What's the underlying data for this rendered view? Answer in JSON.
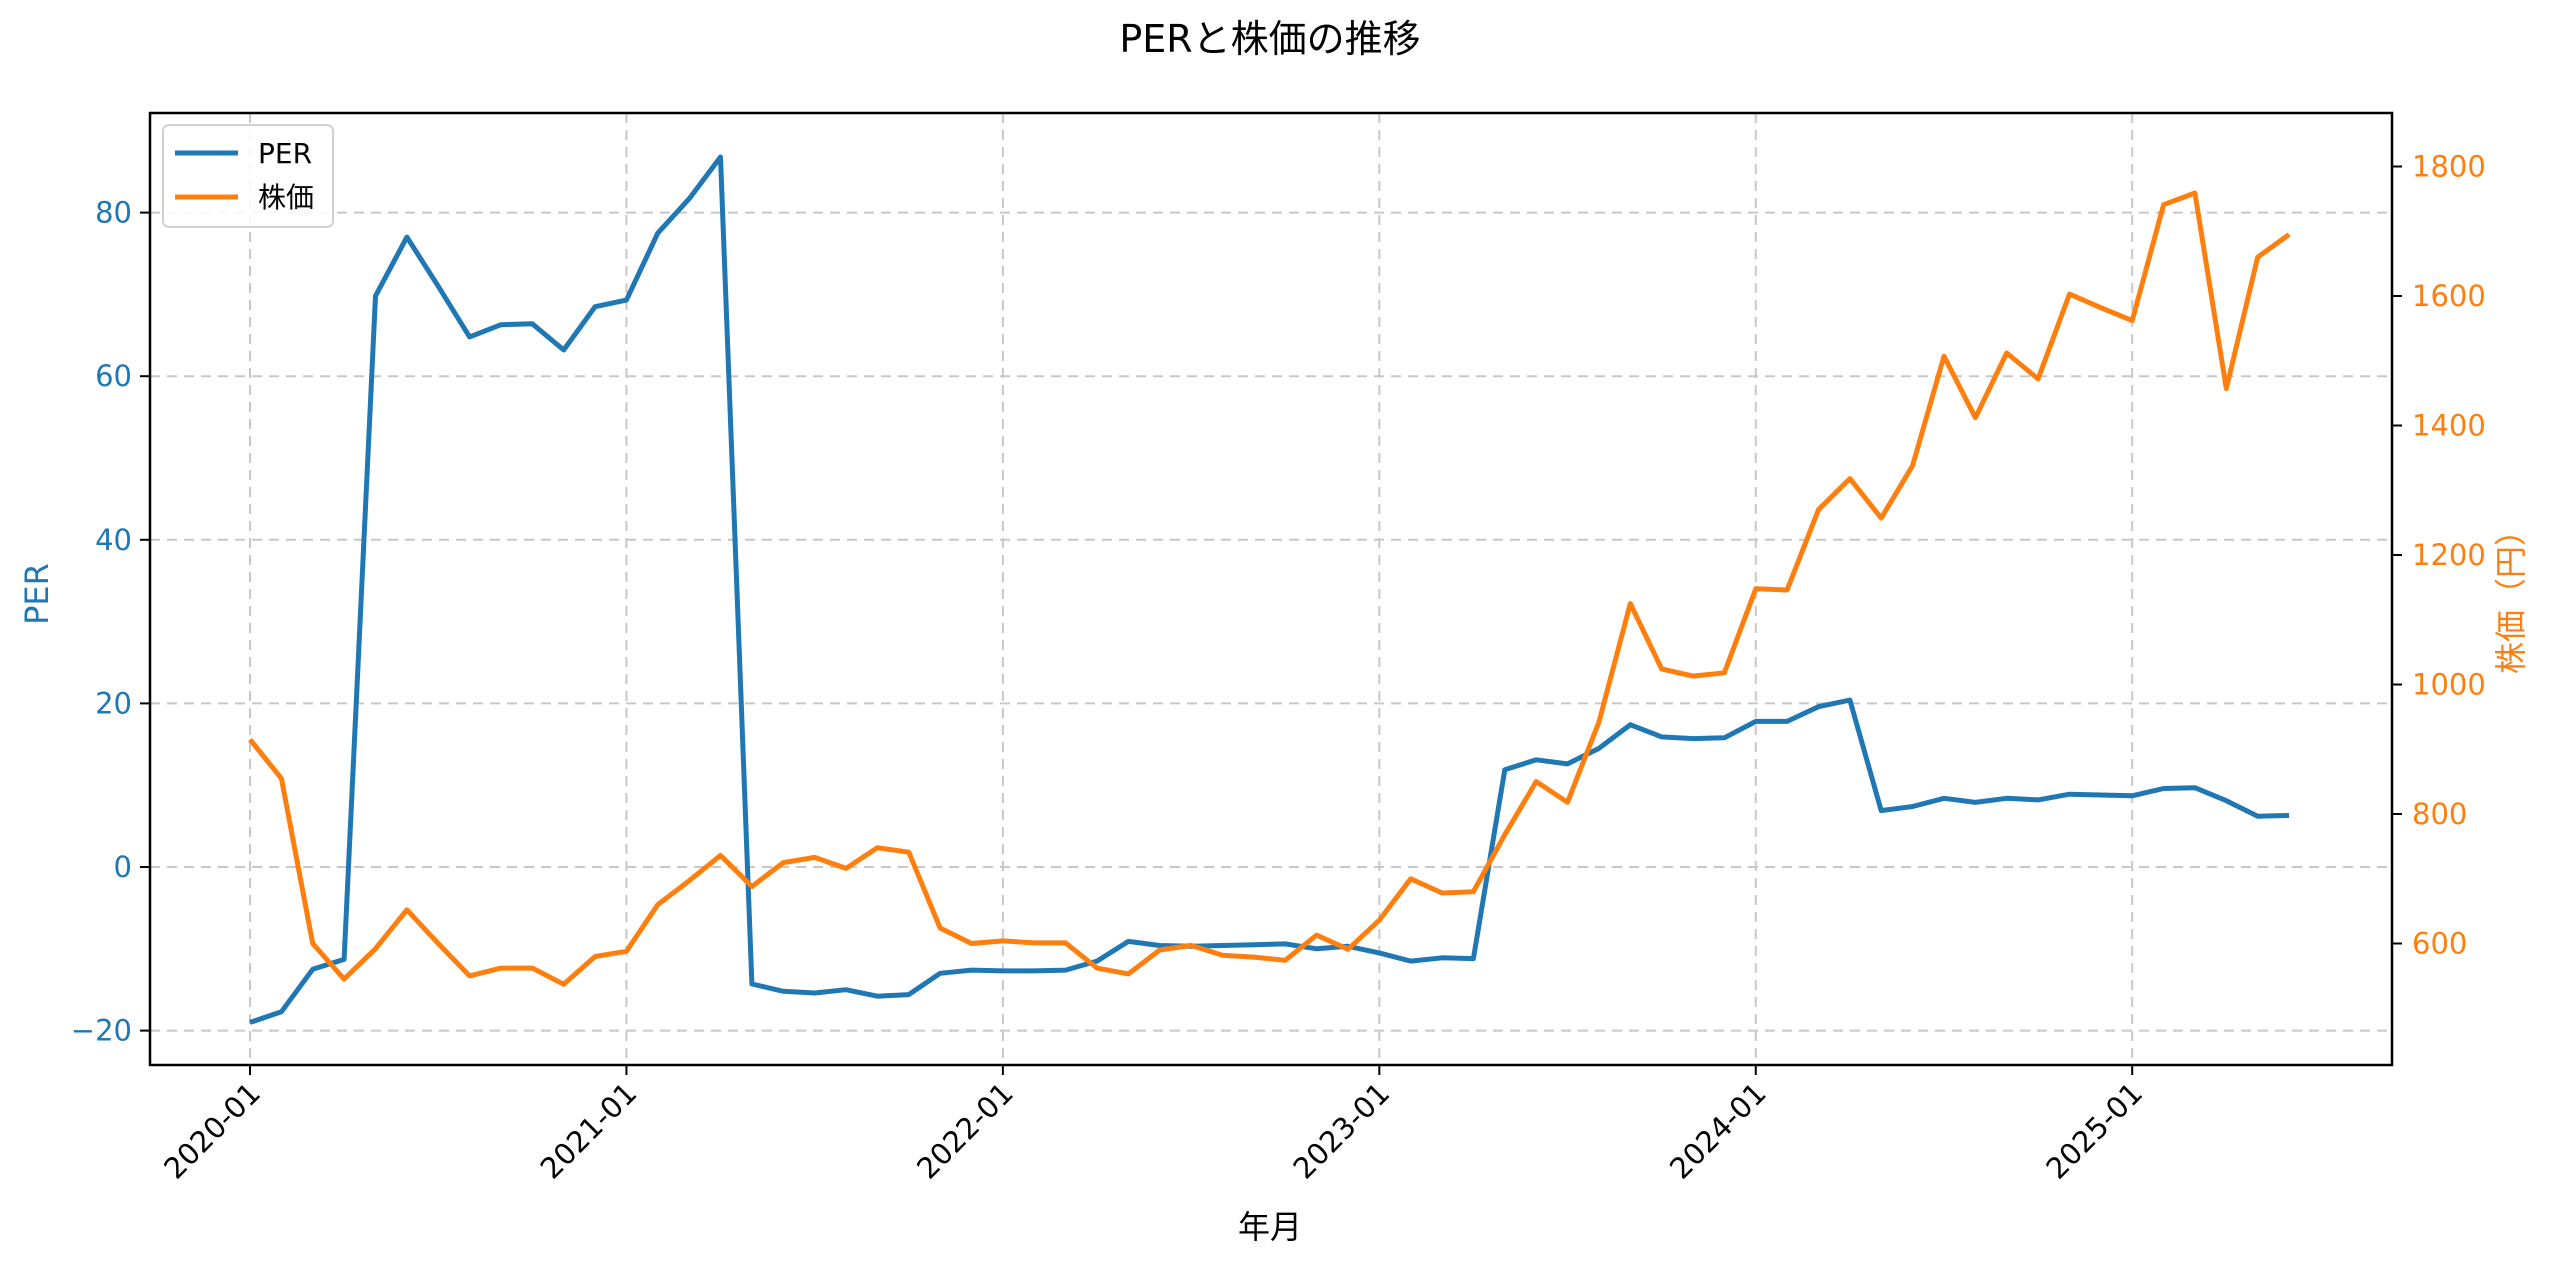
{
  "colors": {
    "per": "#1f77b4",
    "price": "#ff7f0e",
    "grid": "#c8c8c8",
    "axis": "#000000"
  },
  "chart_data": {
    "type": "line",
    "title": "PERと株価の推移",
    "xlabel": "年月",
    "ylabel_left": "PER",
    "ylabel_right": "株価（円）",
    "legend": [
      "PER",
      "株価"
    ],
    "legend_position": "upper left",
    "grid": true,
    "x_ticks": [
      "2020-01",
      "2021-01",
      "2022-01",
      "2023-01",
      "2024-01",
      "2025-01"
    ],
    "ylim_left": [
      -24,
      92
    ],
    "yticks_left": [
      -20,
      0,
      20,
      40,
      60,
      80
    ],
    "ylim_right": [
      465,
      1875
    ],
    "yticks_right": [
      600,
      800,
      1000,
      1200,
      1400,
      1600,
      1800
    ],
    "x": [
      "2020-01",
      "2020-02",
      "2020-03",
      "2020-04",
      "2020-05",
      "2020-06",
      "2020-07",
      "2020-08",
      "2020-09",
      "2020-10",
      "2020-11",
      "2020-12",
      "2021-01",
      "2021-02",
      "2021-03",
      "2021-04",
      "2021-05",
      "2021-06",
      "2021-07",
      "2021-08",
      "2021-09",
      "2021-10",
      "2021-11",
      "2021-12",
      "2022-01",
      "2022-02",
      "2022-03",
      "2022-04",
      "2022-05",
      "2022-06",
      "2022-07",
      "2022-08",
      "2022-09",
      "2022-10",
      "2022-11",
      "2022-12",
      "2023-01",
      "2023-02",
      "2023-03",
      "2023-04",
      "2023-05",
      "2023-06",
      "2023-07",
      "2023-08",
      "2023-09",
      "2023-10",
      "2023-11",
      "2023-12",
      "2024-01",
      "2024-02",
      "2024-03",
      "2024-04",
      "2024-05",
      "2024-06",
      "2024-07",
      "2024-08",
      "2024-09",
      "2024-10",
      "2024-11",
      "2024-12",
      "2025-01",
      "2025-02",
      "2025-03",
      "2025-04",
      "2025-05",
      "2025-06"
    ],
    "series": [
      {
        "name": "PER",
        "axis": "left",
        "values": [
          -19.0,
          -17.7,
          -12.5,
          -11.3,
          69.8,
          77.0,
          71.0,
          64.8,
          66.3,
          66.4,
          63.2,
          68.5,
          69.3,
          77.5,
          81.7,
          86.8,
          -14.3,
          -15.2,
          -15.4,
          -15.0,
          -15.8,
          -15.6,
          -13.0,
          -12.6,
          -12.7,
          -12.7,
          -12.6,
          -11.5,
          -9.1,
          -9.6,
          -9.7,
          -9.6,
          -9.5,
          -9.4,
          -10.0,
          -9.7,
          -10.5,
          -11.5,
          -11.1,
          -11.2,
          11.9,
          13.1,
          12.6,
          14.5,
          17.4,
          15.9,
          15.7,
          15.8,
          17.8,
          17.8,
          19.6,
          20.4,
          6.9,
          7.4,
          8.4,
          7.9,
          8.4,
          8.2,
          8.9,
          8.8,
          8.7,
          9.6,
          9.7,
          8.1,
          6.2,
          6.3
        ]
      },
      {
        "name": "株価",
        "axis": "right",
        "values": [
          915,
          855,
          600,
          545,
          592,
          652,
          600,
          550,
          562,
          562,
          537,
          580,
          588,
          660,
          697,
          736,
          688,
          725,
          733,
          716,
          748,
          741,
          624,
          600,
          604,
          601,
          601,
          562,
          553,
          590,
          597,
          582,
          579,
          574,
          613,
          591,
          636,
          700,
          678,
          680,
          768,
          850,
          818,
          942,
          1125,
          1024,
          1013,
          1018,
          1148,
          1146,
          1270,
          1318,
          1257,
          1338,
          1507,
          1412,
          1512,
          1472,
          1603,
          1582,
          1562,
          1741,
          1759,
          1457,
          1660,
          1695
        ]
      }
    ]
  }
}
